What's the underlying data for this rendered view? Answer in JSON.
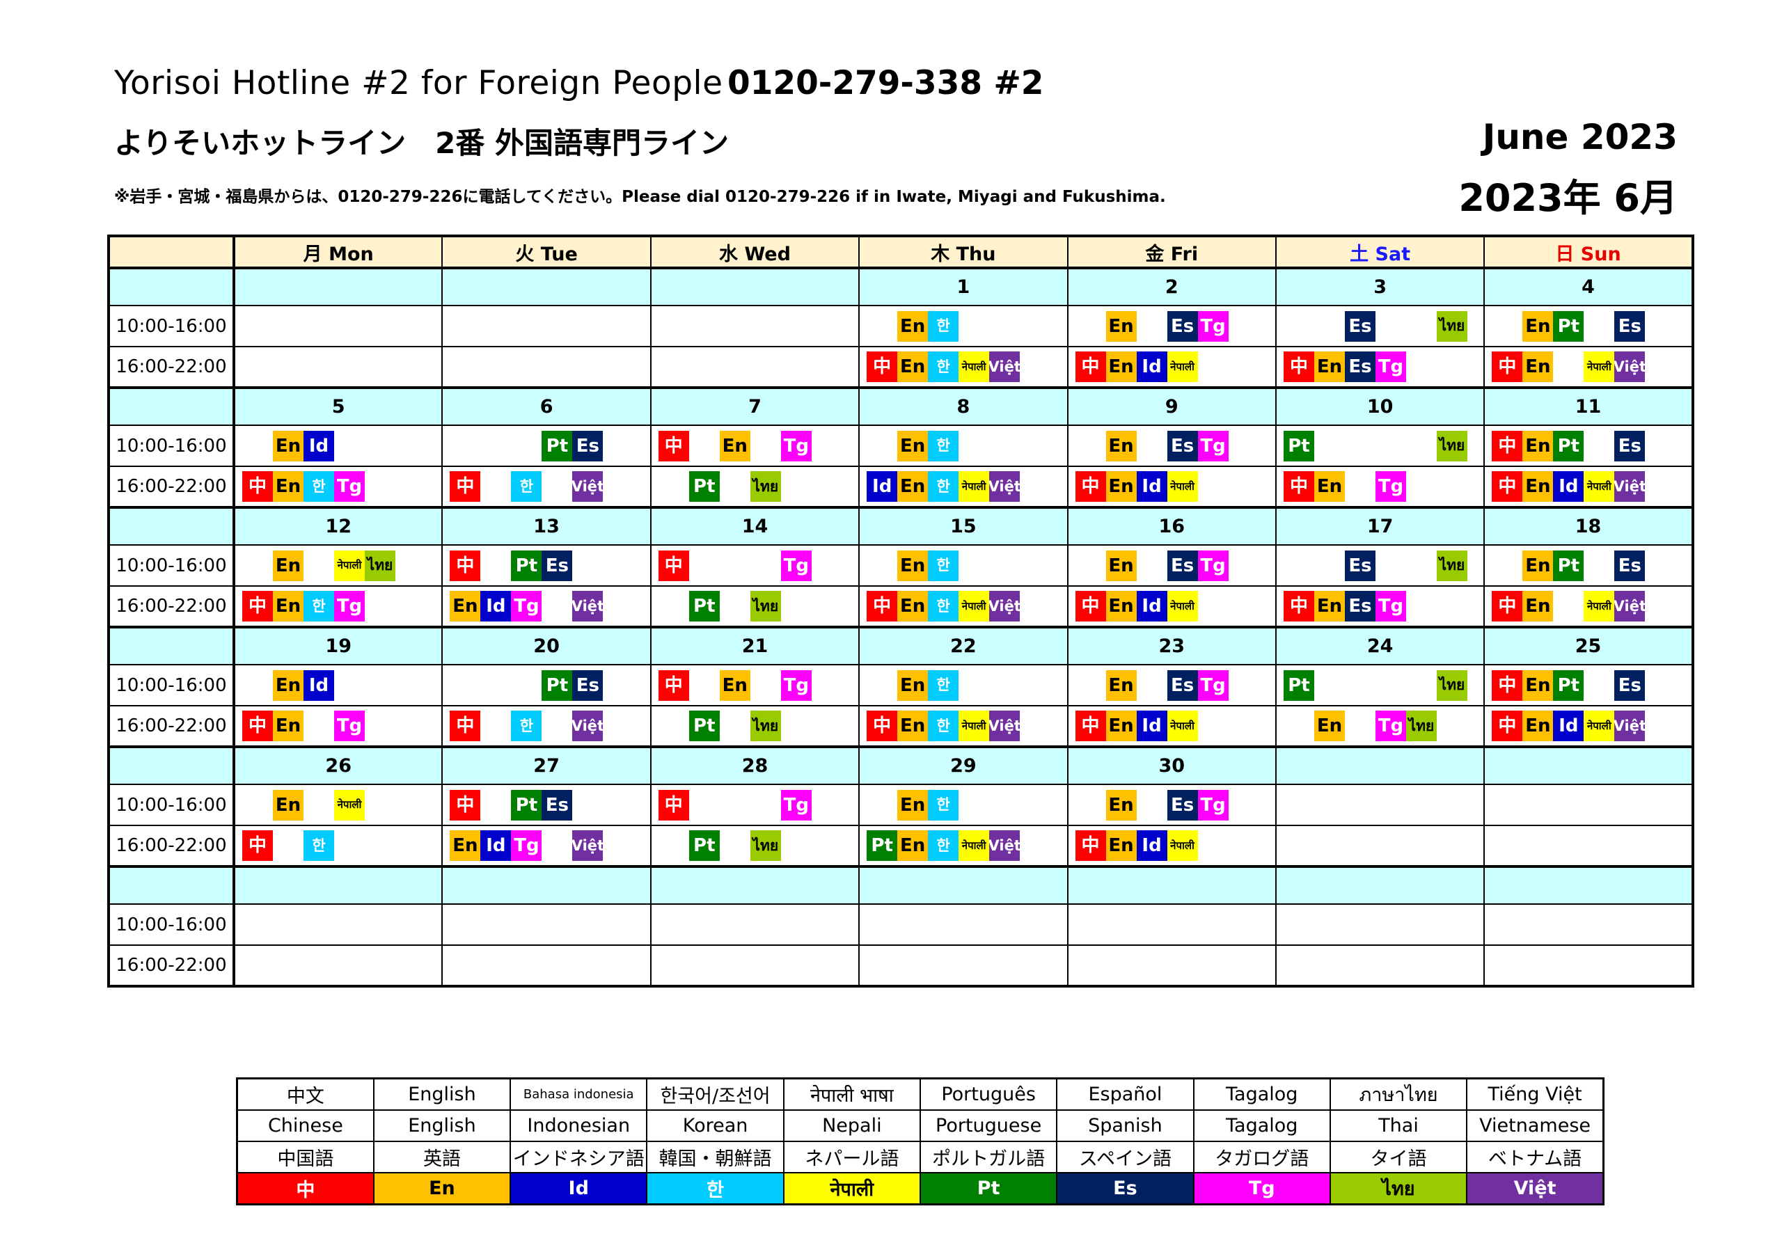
{
  "header": {
    "title_en": "Yorisoi Hotline #2 for Foreign People",
    "phone": "0120-279-338 #2",
    "title_jp": "よりそいホットライン　2番 外国語専門ライン",
    "note": "※岩手・宮城・福島県からは、0120-279-226に電話してください。Please dial 0120-279-226 if in Iwate, Miyagi and Fukushima.",
    "month_en": "June  2023",
    "month_jp": "2023年 6月"
  },
  "days": [
    "月 Mon",
    "火 Tue",
    "水 Wed",
    "木 Thu",
    "金 Fri",
    "土 Sat",
    "日 Sun"
  ],
  "times": [
    "10:00-16:00",
    "16:00-22:00"
  ],
  "languages": {
    "zh": {
      "abbr": "中",
      "bg": "#ff0000",
      "fg": "#ffffff",
      "size": ""
    },
    "en": {
      "abbr": "En",
      "bg": "#ffc000",
      "fg": "#000000",
      "size": ""
    },
    "id": {
      "abbr": "Id",
      "bg": "#0000cc",
      "fg": "#ffffff",
      "size": ""
    },
    "ko": {
      "abbr": "한",
      "bg": "#00ccff",
      "fg": "#ffffff",
      "size": "md"
    },
    "ne": {
      "abbr": "नेपाली",
      "bg": "#ffff00",
      "fg": "#000000",
      "size": "sm"
    },
    "pt": {
      "abbr": "Pt",
      "bg": "#008000",
      "fg": "#ffffff",
      "size": ""
    },
    "es": {
      "abbr": "Es",
      "bg": "#002060",
      "fg": "#ffffff",
      "size": ""
    },
    "tg": {
      "abbr": "Tg",
      "bg": "#ff00ff",
      "fg": "#ffffff",
      "size": ""
    },
    "th": {
      "abbr": "ไทย",
      "bg": "#99cc00",
      "fg": "#000000",
      "size": "md"
    },
    "vi": {
      "abbr": "Việt",
      "bg": "#7030a0",
      "fg": "#ffffff",
      "size": "md"
    }
  },
  "weeks": [
    {
      "dates": [
        "",
        "",
        "",
        "1",
        "2",
        "3",
        "4"
      ],
      "morning": [
        [],
        [],
        [],
        [
          "en:1",
          "ko:2"
        ],
        [
          "en:1",
          "es:3",
          "tg:4"
        ],
        [
          "es:2",
          "th:5"
        ],
        [
          "en:1",
          "pt:2",
          "es:4"
        ]
      ],
      "evening": [
        [],
        [],
        [],
        [
          "zh:0",
          "en:1",
          "ko:2",
          "ne:3",
          "vi:4"
        ],
        [
          "zh:0",
          "en:1",
          "id:2",
          "ne:3"
        ],
        [
          "zh:0",
          "en:1",
          "es:2",
          "tg:3"
        ],
        [
          "zh:0",
          "en:1",
          "ne:3",
          "vi:4"
        ]
      ]
    },
    {
      "dates": [
        "5",
        "6",
        "7",
        "8",
        "9",
        "10",
        "11"
      ],
      "morning": [
        [
          "en:1",
          "id:2"
        ],
        [
          "pt:3",
          "es:4"
        ],
        [
          "zh:0",
          "en:2",
          "tg:4"
        ],
        [
          "en:1",
          "ko:2"
        ],
        [
          "en:1",
          "es:3",
          "tg:4"
        ],
        [
          "pt:0",
          "th:5"
        ],
        [
          "zh:0",
          "en:1",
          "pt:2",
          "es:4"
        ]
      ],
      "evening": [
        [
          "zh:0",
          "en:1",
          "ko:2",
          "tg:3"
        ],
        [
          "zh:0",
          "ko:2",
          "vi:4"
        ],
        [
          "pt:1",
          "th:3"
        ],
        [
          "id:0",
          "en:1",
          "ko:2",
          "ne:3",
          "vi:4"
        ],
        [
          "zh:0",
          "en:1",
          "id:2",
          "ne:3"
        ],
        [
          "zh:0",
          "en:1",
          "tg:3"
        ],
        [
          "zh:0",
          "en:1",
          "id:2",
          "ne:3",
          "vi:4"
        ]
      ]
    },
    {
      "dates": [
        "12",
        "13",
        "14",
        "15",
        "16",
        "17",
        "18"
      ],
      "morning": [
        [
          "en:1",
          "ne:3",
          "th:4"
        ],
        [
          "zh:0",
          "pt:2",
          "es:3"
        ],
        [
          "zh:0",
          "tg:4"
        ],
        [
          "en:1",
          "ko:2"
        ],
        [
          "en:1",
          "es:3",
          "tg:4"
        ],
        [
          "es:2",
          "th:5"
        ],
        [
          "en:1",
          "pt:2",
          "es:4"
        ]
      ],
      "evening": [
        [
          "zh:0",
          "en:1",
          "ko:2",
          "tg:3"
        ],
        [
          "en:0",
          "id:1",
          "tg:2",
          "vi:4"
        ],
        [
          "pt:1",
          "th:3"
        ],
        [
          "zh:0",
          "en:1",
          "ko:2",
          "ne:3",
          "vi:4"
        ],
        [
          "zh:0",
          "en:1",
          "id:2",
          "ne:3"
        ],
        [
          "zh:0",
          "en:1",
          "es:2",
          "tg:3"
        ],
        [
          "zh:0",
          "en:1",
          "ne:3",
          "vi:4"
        ]
      ]
    },
    {
      "dates": [
        "19",
        "20",
        "21",
        "22",
        "23",
        "24",
        "25"
      ],
      "morning": [
        [
          "en:1",
          "id:2"
        ],
        [
          "pt:3",
          "es:4"
        ],
        [
          "zh:0",
          "en:2",
          "tg:4"
        ],
        [
          "en:1",
          "ko:2"
        ],
        [
          "en:1",
          "es:3",
          "tg:4"
        ],
        [
          "pt:0",
          "th:5"
        ],
        [
          "zh:0",
          "en:1",
          "pt:2",
          "es:4"
        ]
      ],
      "evening": [
        [
          "zh:0",
          "en:1",
          "tg:3"
        ],
        [
          "zh:0",
          "ko:2",
          "vi:4"
        ],
        [
          "pt:1",
          "th:3"
        ],
        [
          "zh:0",
          "en:1",
          "ko:2",
          "ne:3",
          "vi:4"
        ],
        [
          "zh:0",
          "en:1",
          "id:2",
          "ne:3"
        ],
        [
          "en:1",
          "tg:3",
          "th:4"
        ],
        [
          "zh:0",
          "en:1",
          "id:2",
          "ne:3",
          "vi:4"
        ]
      ]
    },
    {
      "dates": [
        "26",
        "27",
        "28",
        "29",
        "30",
        "",
        ""
      ],
      "morning": [
        [
          "en:1",
          "ne:3"
        ],
        [
          "zh:0",
          "pt:2",
          "es:3"
        ],
        [
          "zh:0",
          "tg:4"
        ],
        [
          "en:1",
          "ko:2"
        ],
        [
          "en:1",
          "es:3",
          "tg:4"
        ],
        [],
        []
      ],
      "evening": [
        [
          "zh:0",
          "ko:2"
        ],
        [
          "en:0",
          "id:1",
          "tg:2",
          "vi:4"
        ],
        [
          "pt:1",
          "th:3"
        ],
        [
          "pt:0",
          "en:1",
          "ko:2",
          "ne:3",
          "vi:4"
        ],
        [
          "zh:0",
          "en:1",
          "id:2",
          "ne:3"
        ],
        [],
        []
      ]
    },
    {
      "dates": [
        "",
        "",
        "",
        "",
        "",
        "",
        ""
      ],
      "morning": [
        [],
        [],
        [],
        [],
        [],
        [],
        []
      ],
      "evening": [
        [],
        [],
        [],
        [],
        [],
        [],
        []
      ]
    }
  ],
  "legend": {
    "native": [
      "中文",
      "English",
      "Bahasa indonesia",
      "한국어/조선어",
      "नेपाली भाषा",
      "Português",
      "Español",
      "Tagalog",
      "ภาษาไทย",
      "Tiếng Việt"
    ],
    "english": [
      "Chinese",
      "English",
      "Indonesian",
      "Korean",
      "Nepali",
      "Portuguese",
      "Spanish",
      "Tagalog",
      "Thai",
      "Vietnamese"
    ],
    "japanese": [
      "中国語",
      "英語",
      "インドネシア語",
      "韓国・朝鮮語",
      "ネパール語",
      "ポルトガル語",
      "スペイン語",
      "タガログ語",
      "タイ語",
      "ベトナム語"
    ],
    "codes": [
      "zh",
      "en",
      "id",
      "ko",
      "ne",
      "pt",
      "es",
      "tg",
      "th",
      "vi"
    ]
  }
}
